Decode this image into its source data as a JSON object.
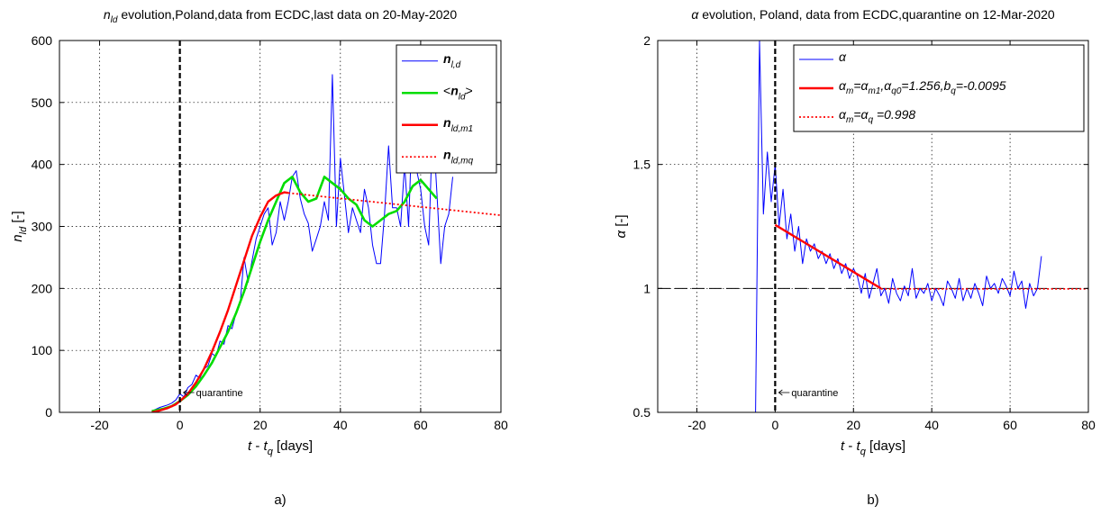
{
  "chart_data": [
    {
      "type": "line",
      "panel_label": "a)",
      "title": "n_ld evolution,Poland,data from ECDC,last data on 20-May-2020",
      "title_parts": {
        "sym": "n",
        "sub": "ld",
        "rest": " evolution,Poland,data from ECDC,last data on 20-May-2020"
      },
      "xlabel": {
        "t": "t",
        "minus": " - ",
        "tq": "t",
        "tq_sub": "q",
        "unit": " [days]"
      },
      "ylabel": {
        "sym": "n",
        "sub": "ld",
        "unit": " [-]"
      },
      "xlim": [
        -30,
        80
      ],
      "ylim": [
        0,
        600
      ],
      "xticks": [
        "-20",
        "0",
        "20",
        "40",
        "60",
        "80"
      ],
      "xtick_values": [
        -20,
        0,
        20,
        40,
        60,
        80
      ],
      "yticks": [
        "0",
        "100",
        "200",
        "300",
        "400",
        "500",
        "600"
      ],
      "ytick_values": [
        0,
        100,
        200,
        300,
        400,
        500,
        600
      ],
      "grid": true,
      "legend_position": "top-right",
      "annotation": "quarantine",
      "vline_x": 0,
      "series": [
        {
          "name": "n_l,d",
          "legend": {
            "sym": "n",
            "sub": "l,d",
            "pre": "",
            "post": ""
          },
          "color": "#0000ff",
          "style": "solid",
          "x": [
            -7,
            -6,
            -5,
            -4,
            -3,
            -2,
            -1,
            0,
            1,
            2,
            3,
            4,
            5,
            6,
            7,
            8,
            9,
            10,
            11,
            12,
            13,
            14,
            15,
            16,
            17,
            18,
            19,
            20,
            21,
            22,
            23,
            24,
            25,
            26,
            27,
            28,
            29,
            30,
            31,
            32,
            33,
            34,
            35,
            36,
            37,
            38,
            39,
            40,
            41,
            42,
            43,
            44,
            45,
            46,
            47,
            48,
            49,
            50,
            51,
            52,
            53,
            54,
            55,
            56,
            57,
            58,
            59,
            60,
            61,
            62,
            63,
            64,
            65,
            66,
            67,
            68
          ],
          "y": [
            2,
            5,
            8,
            10,
            12,
            15,
            20,
            30,
            25,
            40,
            45,
            60,
            55,
            70,
            75,
            95,
            90,
            115,
            110,
            140,
            135,
            160,
            175,
            250,
            210,
            245,
            280,
            300,
            320,
            330,
            270,
            290,
            340,
            310,
            340,
            380,
            390,
            345,
            320,
            305,
            260,
            280,
            300,
            340,
            310,
            545,
            300,
            410,
            350,
            290,
            330,
            310,
            290,
            360,
            330,
            270,
            240,
            240,
            320,
            430,
            330,
            330,
            300,
            400,
            300,
            490,
            390,
            360,
            300,
            270,
            470,
            360,
            240,
            300,
            320,
            380
          ],
          "x_end": 68
        },
        {
          "name": "<n_ld>",
          "legend": {
            "sym": "n",
            "sub": "ld",
            "pre": "<",
            "post": ">"
          },
          "color": "#00dd00",
          "style": "solid",
          "x": [
            -7,
            -4,
            -2,
            0,
            2,
            4,
            6,
            8,
            10,
            12,
            14,
            16,
            18,
            20,
            22,
            24,
            26,
            28,
            30,
            32,
            34,
            36,
            38,
            40,
            42,
            44,
            46,
            48,
            50,
            52,
            54,
            56,
            58,
            60,
            62,
            64
          ],
          "y": [
            2,
            6,
            10,
            18,
            28,
            42,
            60,
            80,
            105,
            130,
            160,
            195,
            235,
            275,
            310,
            340,
            370,
            380,
            355,
            340,
            345,
            380,
            370,
            360,
            345,
            335,
            310,
            300,
            310,
            320,
            325,
            340,
            365,
            375,
            360,
            345
          ]
        },
        {
          "name": "n_ld,m1",
          "legend": {
            "sym": "n",
            "sub": "ld,m1",
            "pre": "",
            "post": ""
          },
          "color": "#ff0000",
          "style": "solid",
          "x": [
            -7,
            -5,
            -3,
            -1,
            0,
            2,
            4,
            6,
            8,
            10,
            12,
            14,
            16,
            18,
            20,
            22,
            24,
            26,
            27
          ],
          "y": [
            0,
            3,
            7,
            13,
            18,
            30,
            48,
            70,
            98,
            130,
            165,
            205,
            245,
            285,
            315,
            340,
            350,
            355,
            354
          ]
        },
        {
          "name": "n_ld,mq",
          "legend": {
            "sym": "n",
            "sub": "ld,mq",
            "pre": "",
            "post": ""
          },
          "color": "#ff0000",
          "style": "dotted",
          "x": [
            27,
            80
          ],
          "y": [
            354,
            318
          ]
        }
      ]
    },
    {
      "type": "line",
      "panel_label": "b)",
      "title": "α evolution, Poland, data from ECDC,quarantine on 12-Mar-2020",
      "title_parts": {
        "sym": "α",
        "rest": " evolution, Poland, data from ECDC,quarantine on 12-Mar-2020"
      },
      "xlabel": {
        "t": "t",
        "minus": " - ",
        "tq": "t",
        "tq_sub": "q",
        "unit": " [days]"
      },
      "ylabel": {
        "sym": "α",
        "unit": " [-]"
      },
      "xlim": [
        -30,
        80
      ],
      "ylim": [
        0.5,
        2
      ],
      "xticks": [
        "-20",
        "0",
        "20",
        "40",
        "60",
        "80"
      ],
      "xtick_values": [
        -20,
        0,
        20,
        40,
        60,
        80
      ],
      "yticks": [
        "0.5",
        "1",
        "1.5",
        "2"
      ],
      "ytick_values": [
        0.5,
        1,
        1.5,
        2
      ],
      "grid": true,
      "legend_position": "top-right",
      "annotation": "quarantine",
      "vline_x": 0,
      "hline_y": 1,
      "series": [
        {
          "name": "α",
          "legend_text": "α",
          "color": "#0000ff",
          "style": "solid",
          "x": [
            -5,
            -4,
            -3,
            -2,
            -1,
            0,
            1,
            2,
            3,
            4,
            5,
            6,
            7,
            8,
            9,
            10,
            11,
            12,
            13,
            14,
            15,
            16,
            17,
            18,
            19,
            20,
            21,
            22,
            23,
            24,
            25,
            26,
            27,
            28,
            29,
            30,
            31,
            32,
            33,
            34,
            35,
            36,
            37,
            38,
            39,
            40,
            41,
            42,
            43,
            44,
            45,
            46,
            47,
            48,
            49,
            50,
            51,
            52,
            53,
            54,
            55,
            56,
            57,
            58,
            59,
            60,
            61,
            62,
            63,
            64,
            65,
            66,
            67,
            68
          ],
          "y": [
            0.5,
            2.0,
            1.3,
            1.55,
            1.35,
            1.5,
            1.25,
            1.4,
            1.2,
            1.3,
            1.15,
            1.25,
            1.1,
            1.2,
            1.15,
            1.18,
            1.12,
            1.15,
            1.1,
            1.14,
            1.08,
            1.12,
            1.06,
            1.1,
            1.04,
            1.08,
            1.05,
            0.98,
            1.06,
            0.96,
            1.02,
            1.08,
            0.97,
            1.0,
            0.94,
            1.04,
            0.98,
            0.95,
            1.01,
            0.97,
            1.08,
            0.96,
            1.0,
            0.98,
            1.02,
            0.95,
            1.0,
            0.97,
            0.93,
            1.03,
            1.0,
            0.96,
            1.04,
            0.95,
            1.0,
            0.96,
            1.02,
            0.98,
            0.93,
            1.05,
            1.0,
            1.02,
            0.98,
            1.04,
            1.01,
            0.97,
            1.07,
            1.0,
            1.03,
            0.92,
            1.02,
            0.97,
            1.0,
            1.13
          ]
        },
        {
          "name": "α_m=α_m1, α_q0=1.256, b_q=-0.0095",
          "legend_text": "α_m=α_m1,α_q0=1.256,b_q=-0.0095",
          "legend_rich": [
            [
              "α",
              "m"
            ],
            [
              "=α",
              "m1"
            ],
            [
              ",α",
              "q0"
            ],
            [
              "=1.256,b",
              "q"
            ],
            [
              "=-0.0095",
              ""
            ]
          ],
          "color": "#ff0000",
          "style": "solid",
          "x": [
            0,
            27
          ],
          "y": [
            1.256,
            1.0
          ]
        },
        {
          "name": "α_m=α_q=0.998",
          "legend_text": "α_m=α_q =0.998",
          "legend_rich": [
            [
              "α",
              "m"
            ],
            [
              "=α",
              "q"
            ],
            [
              " =0.998",
              ""
            ]
          ],
          "color": "#ff0000",
          "style": "dotted",
          "x": [
            27,
            80
          ],
          "y": [
            0.998,
            0.998
          ]
        }
      ]
    }
  ]
}
